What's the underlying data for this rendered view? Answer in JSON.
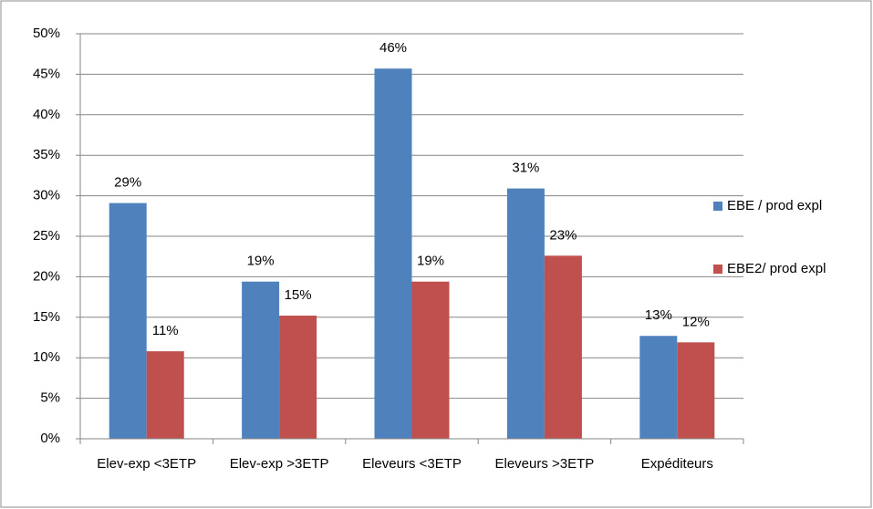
{
  "chart_data": {
    "type": "bar",
    "categories": [
      "Elev-exp <3ETP",
      "Elev-exp >3ETP",
      "Eleveurs <3ETP",
      "Eleveurs >3ETP",
      "Expéditeurs"
    ],
    "series": [
      {
        "name": "EBE / prod expl",
        "color": "#4f81bd",
        "values": [
          29.1,
          19.4,
          45.7,
          30.9,
          12.7
        ],
        "value_labels": [
          "29%",
          "19%",
          "46%",
          "31%",
          "13%"
        ]
      },
      {
        "name": "EBE2/ prod expl",
        "color": "#c0504d",
        "values": [
          10.8,
          15.2,
          19.4,
          22.6,
          11.9
        ],
        "value_labels": [
          "11%",
          "15%",
          "19%",
          "23%",
          "12%"
        ]
      }
    ],
    "ylim": [
      0,
      50
    ],
    "yticks": [
      {
        "value": 0,
        "label": "0%"
      },
      {
        "value": 5,
        "label": "5%"
      },
      {
        "value": 10,
        "label": "10%"
      },
      {
        "value": 15,
        "label": "15%"
      },
      {
        "value": 20,
        "label": "20%"
      },
      {
        "value": 25,
        "label": "25%"
      },
      {
        "value": 30,
        "label": "30%"
      },
      {
        "value": 35,
        "label": "35%"
      },
      {
        "value": 40,
        "label": "40%"
      },
      {
        "value": 45,
        "label": "45%"
      },
      {
        "value": 50,
        "label": "50%"
      }
    ],
    "grid": true,
    "legend": "right"
  }
}
